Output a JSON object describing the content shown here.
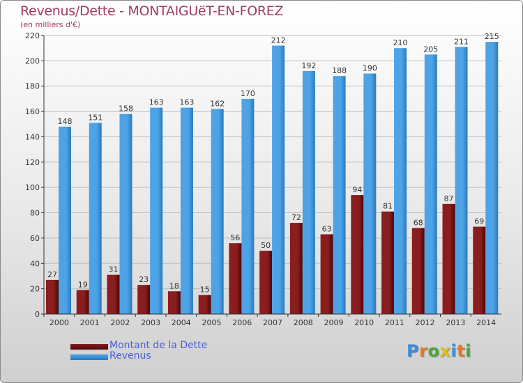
{
  "title": "Revenus/Dette - MONTAIGUëT-EN-FOREZ",
  "subtitle": "(en milliers d'€)",
  "colors": {
    "dette": "#8a1e1e",
    "dette_dark": "#4a0808",
    "revenus": "#4da3e6",
    "revenus_dark": "#2b7bbd",
    "title": "#a23a63",
    "legend_text": "#4a5ed6"
  },
  "legend": {
    "dette_label": "Montant de la Dette",
    "revenus_label": "Revenus"
  },
  "logo": {
    "text": "Proxiti"
  },
  "chart_data": {
    "type": "bar",
    "categories": [
      "2000",
      "2001",
      "2002",
      "2003",
      "2004",
      "2005",
      "2006",
      "2007",
      "2008",
      "2009",
      "2010",
      "2011",
      "2012",
      "2013",
      "2014"
    ],
    "series": [
      {
        "name": "Montant de la Dette",
        "values": [
          27,
          19,
          31,
          23,
          18,
          15,
          56,
          50,
          72,
          63,
          94,
          81,
          68,
          87,
          69
        ]
      },
      {
        "name": "Revenus",
        "values": [
          148,
          151,
          158,
          163,
          163,
          162,
          170,
          212,
          192,
          188,
          190,
          210,
          205,
          211,
          215
        ]
      }
    ],
    "yticks": [
      0,
      20,
      40,
      60,
      80,
      100,
      120,
      140,
      160,
      180,
      200,
      220
    ],
    "ylim": [
      0,
      220
    ],
    "grid": true,
    "legend_position": "bottom-left"
  }
}
